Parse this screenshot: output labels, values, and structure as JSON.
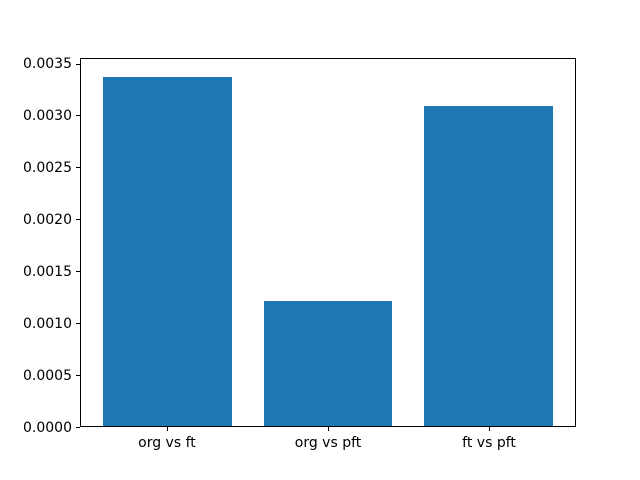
{
  "chart_data": {
    "type": "bar",
    "title": "",
    "xlabel": "",
    "ylabel": "",
    "categories": [
      "org vs ft",
      "org vs pft",
      "ft vs pft"
    ],
    "values": [
      0.00338,
      0.00121,
      0.0031
    ],
    "y_ticks": [
      "0.0000",
      "0.0005",
      "0.0010",
      "0.0015",
      "0.0020",
      "0.0025",
      "0.0030",
      "0.0035"
    ],
    "ylim": [
      0,
      0.003553
    ],
    "bar_color": "#1f77b4",
    "background_color": "#ffffff",
    "axis_color": "#000000",
    "grid": false,
    "legend": null
  }
}
